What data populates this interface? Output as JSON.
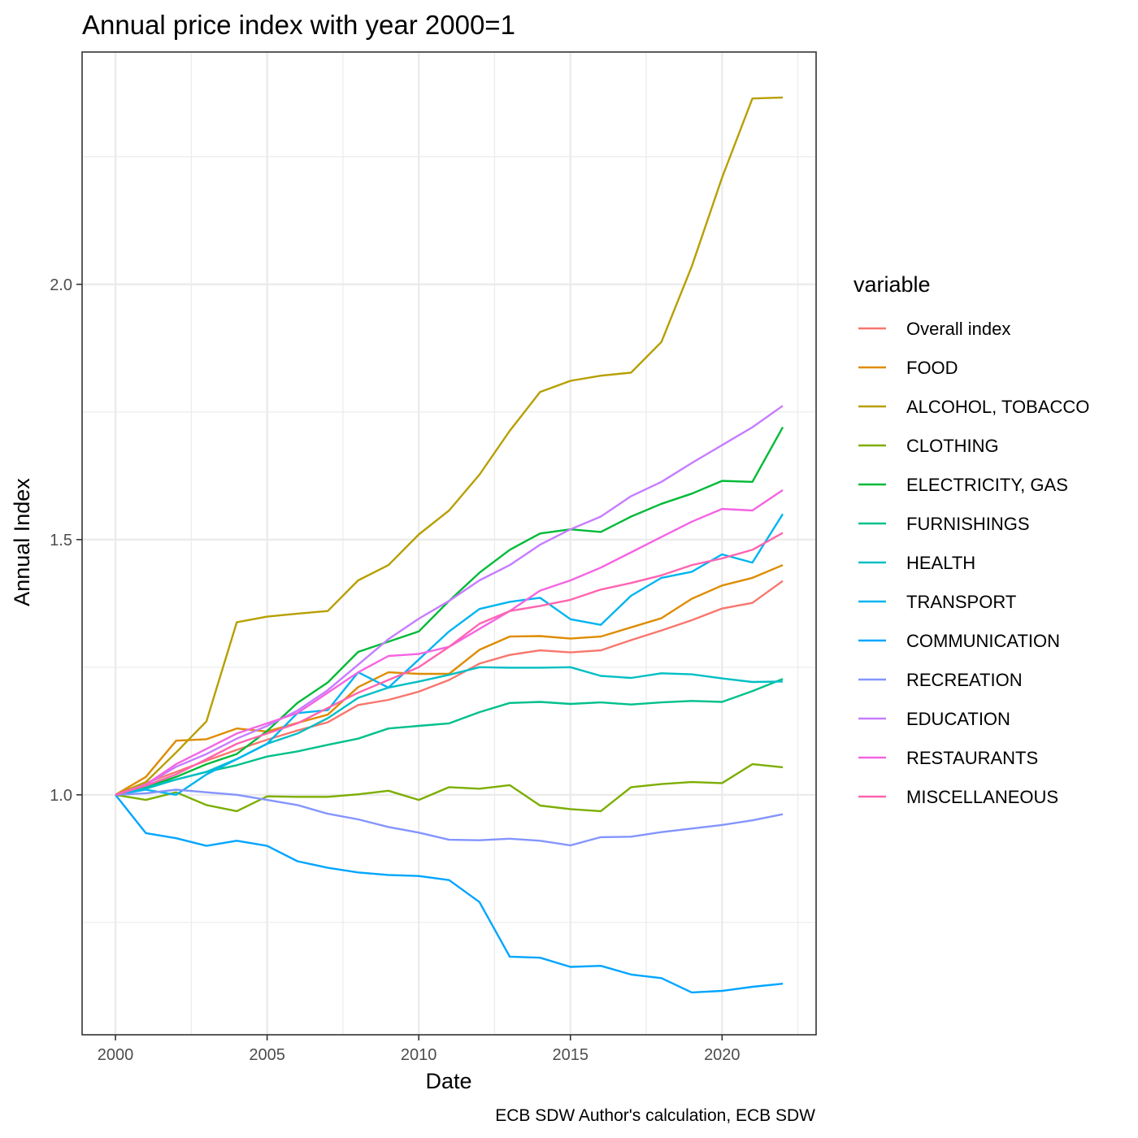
{
  "chart_data": {
    "type": "line",
    "title": "Annual price index with year 2000=1",
    "xlabel": "Date",
    "ylabel": "Annual Index",
    "caption": "ECB SDW Author's calculation, ECB SDW",
    "legend_title": "variable",
    "legend_position": "right",
    "grid": true,
    "xlim": [
      1998.9,
      2023.1
    ],
    "ylim": [
      0.53,
      2.455
    ],
    "x_ticks": [
      2000,
      2005,
      2010,
      2015,
      2020
    ],
    "x_minor_ticks": [
      2002.5,
      2007.5,
      2012.5,
      2017.5,
      2022.5
    ],
    "y_ticks": [
      1.0,
      1.5,
      2.0
    ],
    "y_minor_ticks": [
      0.75,
      1.25,
      1.75,
      2.25
    ],
    "x_tick_labels": [
      "2000",
      "2005",
      "2010",
      "2015",
      "2020"
    ],
    "y_tick_labels": [
      "1.0",
      "1.5",
      "2.0"
    ],
    "x": [
      2000,
      2001,
      2002,
      2003,
      2004,
      2005,
      2006,
      2007,
      2008,
      2009,
      2010,
      2011,
      2012,
      2013,
      2014,
      2015,
      2016,
      2017,
      2018,
      2019,
      2020,
      2021,
      2022
    ],
    "series": [
      {
        "name": "Overall index",
        "color": "#F8766D",
        "values": [
          1.0,
          1.023,
          1.045,
          1.067,
          1.088,
          1.108,
          1.126,
          1.142,
          1.176,
          1.186,
          1.202,
          1.225,
          1.257,
          1.274,
          1.283,
          1.279,
          1.283,
          1.303,
          1.322,
          1.342,
          1.365,
          1.376,
          1.419
        ]
      },
      {
        "name": "FOOD",
        "color": "#DE8C00",
        "values": [
          1.0,
          1.035,
          1.106,
          1.109,
          1.13,
          1.124,
          1.141,
          1.157,
          1.211,
          1.24,
          1.237,
          1.237,
          1.284,
          1.31,
          1.311,
          1.306,
          1.31,
          1.328,
          1.346,
          1.384,
          1.41,
          1.425,
          1.45
        ]
      },
      {
        "name": "ALCOHOL, TOBACCO",
        "color": "#B79F00",
        "values": [
          1.0,
          1.025,
          1.083,
          1.144,
          1.338,
          1.349,
          1.355,
          1.36,
          1.42,
          1.45,
          1.51,
          1.557,
          1.627,
          1.713,
          1.789,
          1.811,
          1.821,
          1.827,
          1.887,
          2.035,
          2.209,
          2.364,
          2.366
        ]
      },
      {
        "name": "CLOTHING",
        "color": "#7CAE00",
        "values": [
          1.0,
          0.99,
          1.005,
          0.98,
          0.968,
          0.997,
          0.996,
          0.996,
          1.001,
          1.008,
          0.99,
          1.015,
          1.012,
          1.019,
          0.979,
          0.972,
          0.968,
          1.015,
          1.021,
          1.025,
          1.023,
          1.06,
          1.054
        ]
      },
      {
        "name": "ELECTRICITY, GAS",
        "color": "#00BA38",
        "values": [
          1.0,
          1.015,
          1.035,
          1.06,
          1.08,
          1.125,
          1.18,
          1.22,
          1.28,
          1.3,
          1.32,
          1.38,
          1.435,
          1.48,
          1.512,
          1.52,
          1.515,
          1.545,
          1.57,
          1.59,
          1.615,
          1.613,
          1.72
        ]
      },
      {
        "name": "FURNISHINGS",
        "color": "#00C08B",
        "values": [
          1.0,
          1.015,
          1.03,
          1.045,
          1.058,
          1.075,
          1.085,
          1.098,
          1.11,
          1.13,
          1.135,
          1.14,
          1.162,
          1.18,
          1.182,
          1.178,
          1.181,
          1.177,
          1.181,
          1.184,
          1.182,
          1.203,
          1.227
        ]
      },
      {
        "name": "HEALTH",
        "color": "#00BFC4",
        "values": [
          1.0,
          1.012,
          1.03,
          1.045,
          1.07,
          1.1,
          1.12,
          1.15,
          1.19,
          1.21,
          1.222,
          1.235,
          1.25,
          1.249,
          1.249,
          1.25,
          1.233,
          1.229,
          1.238,
          1.236,
          1.228,
          1.221,
          1.222
        ]
      },
      {
        "name": "TRANSPORT",
        "color": "#00B4F0",
        "values": [
          1.0,
          1.01,
          1.0,
          1.04,
          1.07,
          1.1,
          1.16,
          1.166,
          1.24,
          1.21,
          1.265,
          1.32,
          1.364,
          1.378,
          1.386,
          1.344,
          1.333,
          1.39,
          1.425,
          1.437,
          1.471,
          1.455,
          1.55
        ]
      },
      {
        "name": "COMMUNICATION",
        "color": "#00A5FF",
        "values": [
          1.0,
          0.925,
          0.915,
          0.9,
          0.91,
          0.9,
          0.87,
          0.857,
          0.848,
          0.843,
          0.841,
          0.833,
          0.79,
          0.683,
          0.681,
          0.663,
          0.665,
          0.648,
          0.641,
          0.613,
          0.616,
          0.624,
          0.63
        ]
      },
      {
        "name": "RECREATION",
        "color": "#8494FF",
        "values": [
          1.0,
          1.003,
          1.01,
          1.005,
          1.0,
          0.99,
          0.98,
          0.963,
          0.952,
          0.937,
          0.926,
          0.912,
          0.911,
          0.914,
          0.91,
          0.901,
          0.917,
          0.918,
          0.927,
          0.934,
          0.941,
          0.95,
          0.962
        ]
      },
      {
        "name": "EDUCATION",
        "color": "#C77CFF",
        "values": [
          1.0,
          1.02,
          1.055,
          1.08,
          1.11,
          1.135,
          1.165,
          1.205,
          1.255,
          1.305,
          1.345,
          1.38,
          1.42,
          1.45,
          1.49,
          1.52,
          1.545,
          1.585,
          1.613,
          1.65,
          1.685,
          1.72,
          1.762
        ]
      },
      {
        "name": "RESTAURANTS",
        "color": "#F564E3",
        "values": [
          1.0,
          1.02,
          1.06,
          1.09,
          1.12,
          1.14,
          1.16,
          1.2,
          1.24,
          1.272,
          1.276,
          1.29,
          1.325,
          1.36,
          1.4,
          1.42,
          1.445,
          1.475,
          1.505,
          1.535,
          1.56,
          1.557,
          1.597
        ]
      },
      {
        "name": "MISCELLANEOUS",
        "color": "#FF64B0",
        "values": [
          1.0,
          1.018,
          1.04,
          1.07,
          1.1,
          1.12,
          1.14,
          1.17,
          1.2,
          1.225,
          1.25,
          1.29,
          1.335,
          1.36,
          1.37,
          1.382,
          1.402,
          1.415,
          1.43,
          1.45,
          1.463,
          1.48,
          1.513
        ]
      }
    ]
  }
}
